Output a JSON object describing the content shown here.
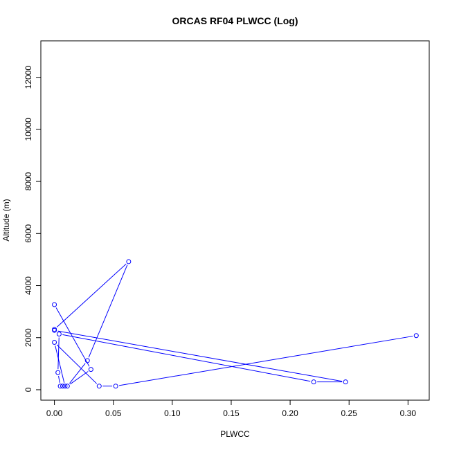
{
  "chart_data": {
    "type": "line",
    "title": "ORCAS RF04 PLWCC (Log)",
    "xlabel": "PLWCC",
    "ylabel": "Altitude (m)",
    "xlim": [
      -0.0115,
      0.318
    ],
    "ylim": [
      -400,
      13400
    ],
    "xticks": [
      0,
      0.05,
      0.1,
      0.15,
      0.2,
      0.25,
      0.3
    ],
    "xtick_labels": [
      "0.00",
      "0.05",
      "0.10",
      "0.15",
      "0.20",
      "0.25",
      "0.30"
    ],
    "yticks": [
      0,
      2000,
      4000,
      6000,
      8000,
      10000,
      12000
    ],
    "ytick_labels": [
      "0",
      "2000",
      "4000",
      "6000",
      "8000",
      "10000",
      "12000"
    ],
    "grid": false,
    "color": "#0000ff",
    "style": "points-and-lines",
    "x": [
      0,
      0.031,
      0.011,
      0.028,
      0.063,
      0,
      0,
      0.247,
      0.22,
      0.004,
      0.003,
      0.005,
      0.007,
      0.009,
      0,
      0.038,
      0.052,
      0.307
    ],
    "y": [
      3270,
      780,
      140,
      1120,
      4920,
      2320,
      2280,
      300,
      300,
      2140,
      660,
      140,
      140,
      140,
      1820,
      140,
      140,
      2080
    ]
  }
}
